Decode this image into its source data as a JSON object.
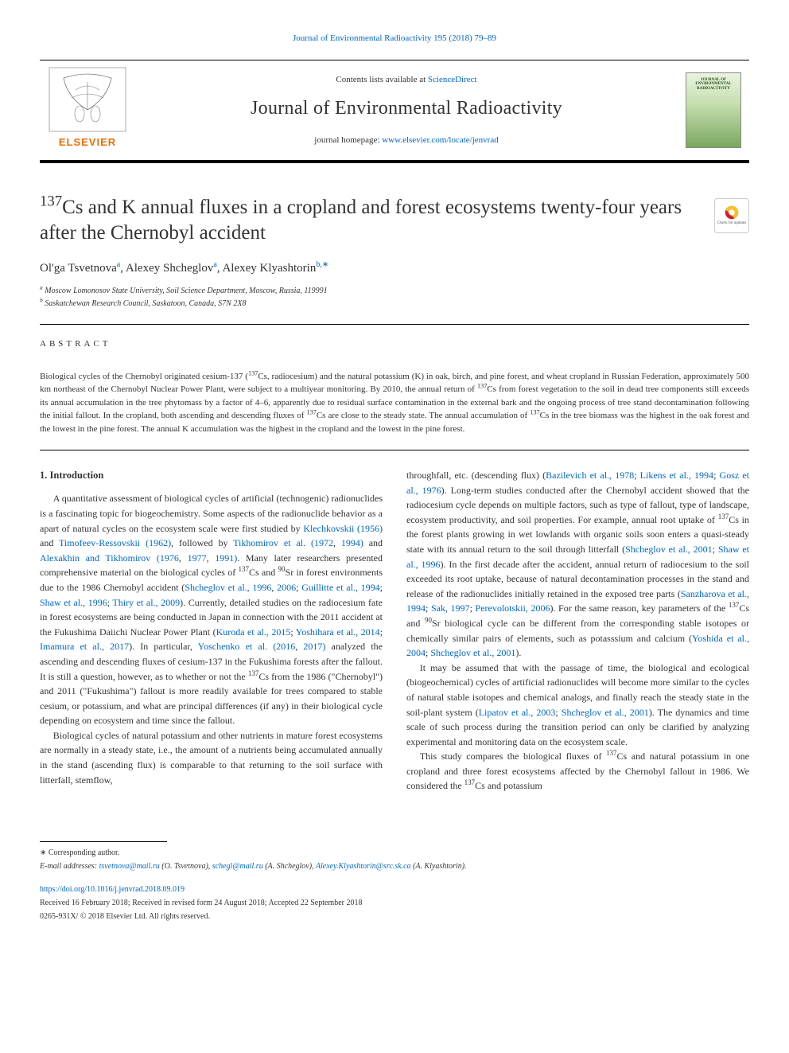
{
  "topLink": {
    "pre": "Journal of Environmental Radioactivity 195 (2018) 79–89"
  },
  "header": {
    "contents_pre": "Contents lists available at ",
    "contents_link": "ScienceDirect",
    "journal_title": "Journal of Environmental Radioactivity",
    "homepage_pre": "journal homepage: ",
    "homepage_link": "www.elsevier.com/locate/jenvrad",
    "cover_title": "JOURNAL OF ENVIRONMENTAL RADIOACTIVITY"
  },
  "title": {
    "html": "<sup>137</sup>Cs and K annual fluxes in a cropland and forest ecosystems twenty-four years after the Chernobyl accident"
  },
  "check_updates_label": "Check for updates",
  "authors": {
    "a1": {
      "name": "Ol'ga Tsvetnova",
      "aff": "a"
    },
    "a2": {
      "name": "Alexey Shcheglov",
      "aff": "a"
    },
    "a3": {
      "name": "Alexey Klyashtorin",
      "aff": "b,",
      "corr": "∗"
    }
  },
  "affiliations": {
    "a": "Moscow Lomonosov State University, Soil Science Department, Moscow, Russia, 119991",
    "b": "Saskatchewan Research Council, Saskatoon, Canada, S7N 2X8"
  },
  "abstract": {
    "heading": "ABSTRACT",
    "text_html": "Biological cycles of the Chernobyl originated cesium-137 (<sup>137</sup>Cs, radiocesium) and the natural potassium (K) in oak, birch, and pine forest, and wheat cropland in Russian Federation, approximately 500 km northeast of the Chernobyl Nuclear Power Plant, were subject to a multiyear monitoring. By 2010, the annual return of <sup>137</sup>Cs from forest vegetation to the soil in dead tree components still exceeds its annual accumulation in the tree phytomass by a factor of 4–6, apparently due to residual surface contamination in the external bark and the ongoing process of tree stand decontamination following the initial fallout. In the cropland, both ascending and descending fluxes of <sup>137</sup>Cs are close to the steady state. The annual accumulation of <sup>137</sup>Cs in the tree biomass was the highest in the oak forest and the lowest in the pine forest. The annual K accumulation was the highest in the cropland and the lowest in the pine forest."
  },
  "intro": {
    "heading": "1. Introduction",
    "p1_html": "A quantitative assessment of biological cycles of artificial (technogenic) radionuclides is a fascinating topic for biogeochemistry. Some aspects of the radionuclide behavior as a apart of natural cycles on the ecosystem scale were first studied by <a>Klechkovskii (1956)</a> and <a>Timofeev-Ressovskii (1962)</a>, followed by <a>Tikhomirov et al. (1972</a>, <a>1994)</a> and <a>Alexakhin and Tikhomirov (1976</a>, <a>1977</a>, <a>1991)</a>. Many later researchers presented comprehensive material on the biological cycles of <sup>137</sup>Cs and <sup>90</sup>Sr in forest environments due to the 1986 Chernobyl accident (<a>Shcheglov et al., 1996</a>, <a>2006</a>; <a>Guillitte et al., 1994</a>; <a>Shaw et al., 1996</a>; <a>Thiry et al., 2009</a>). Currently, detailed studies on the radiocesium fate in forest ecosystems are being conducted in Japan in connection with the 2011 accident at the Fukushima Daiichi Nuclear Power Plant (<a>Kuroda et al., 2015</a>; <a>Yoshihara et al., 2014</a>; <a>Imamura et al., 2017</a>). In particular, <a>Yoschenko et al. (2016</a>, <a>2017)</a> analyzed the ascending and descending fluxes of cesium-137 in the Fukushima forests after the fallout. It is still a question, however, as to whether or not the <sup>137</sup>Cs from the 1986 (\"Chernobyl\") and 2011 (\"Fukushima\") fallout is more readily available for trees compared to stable cesium, or potassium, and what are principal differences (if any) in their biological cycle depending on ecosystem and time since the fallout.",
    "p2_html": "Biological cycles of natural potassium and other nutrients in mature forest ecosystems are normally in a steady state, i.e., the amount of a nutrients being accumulated annually in the stand (ascending flux) is comparable to that returning to the soil surface with litterfall, stemflow,",
    "p3_html": "throughfall, etc. (descending flux) (<a>Bazilevich et al., 1978</a>; <a>Likens et al., 1994</a>; <a>Gosz et al., 1976</a>). Long-term studies conducted after the Chernobyl accident showed that the radiocesium cycle depends on multiple factors, such as type of fallout, type of landscape, ecosystem productivity, and soil properties. For example, annual root uptake of <sup>137</sup>Cs in the forest plants growing in wet lowlands with organic soils soon enters a quasi-steady state with its annual return to the soil through litterfall (<a>Shcheglov et al., 2001</a>; <a>Shaw et al., 1996</a>). In the first decade after the accident, annual return of radiocesium to the soil exceeded its root uptake, because of natural decontamination processes in the stand and release of the radionuclides initially retained in the exposed tree parts (<a>Sanzharova et al., 1994</a>; <a>Sak, 1997</a>; <a>Perevolotskii, 2006</a>). For the same reason, key parameters of the <sup>137</sup>Cs and <sup>90</sup>Sr biological cycle can be different from the corresponding stable isotopes or chemically similar pairs of elements, such as potasssium and calcium (<a>Yoshida et al., 2004</a>; <a>Shcheglov et al., 2001</a>).",
    "p4_html": "It may be assumed that with the passage of time, the biological and ecological (biogeochemical) cycles of artificial radionuclides will become more similar to the cycles of natural stable isotopes and chemical analogs, and finally reach the steady state in the soil-plant system (<a>Lipatov et al., 2003</a>; <a>Shcheglov et al., 2001</a>). The dynamics and time scale of such process during the transition period can only be clarified by analyzing experimental and monitoring data on the ecosystem scale.",
    "p5_html": "This study compares the biological fluxes of <sup>137</sup>Cs and natural potassium in one cropland and three forest ecosystems affected by the Chernobyl fallout in 1986. We considered the <sup>137</sup>Cs and potassium"
  },
  "footer": {
    "corresponding": "∗ Corresponding author.",
    "emails_label": "E-mail addresses:",
    "e1": {
      "addr": "tsvetnova@mail.ru",
      "who": "(O. Tsvetnova)"
    },
    "e2": {
      "addr": "schegl@mail.ru",
      "who": "(A. Shcheglov)"
    },
    "e3": {
      "addr": "Alexey.Klyashtorin@src.sk.ca",
      "who": "(A. Klyashtorin)."
    },
    "doi": "https://doi.org/10.1016/j.jenvrad.2018.09.019",
    "received": "Received 16 February 2018; Received in revised form 24 August 2018; Accepted 22 September 2018",
    "issn": "0265-931X/ © 2018 Elsevier Ltd. All rights reserved."
  },
  "colors": {
    "link": "#0066cc",
    "text": "#333333",
    "rule": "#000000",
    "elsevier_orange": "#ef6c00"
  }
}
